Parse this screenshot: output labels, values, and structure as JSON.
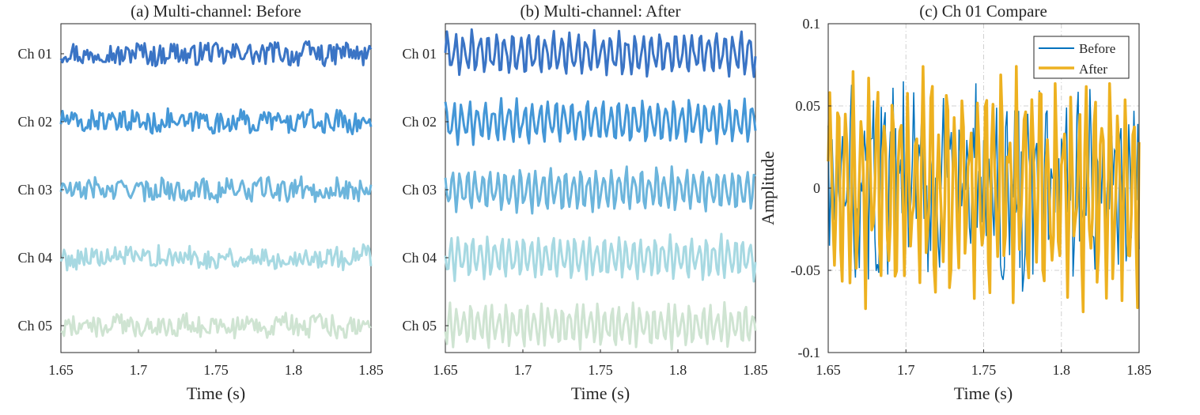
{
  "colors": {
    "channels": [
      "#3a74c5",
      "#4497d7",
      "#6cb5dc",
      "#a7d9e2",
      "#cfe4d2"
    ],
    "before": "#0072bd",
    "after": "#edb120",
    "grid": "#d0d0d0",
    "axis": "#262626"
  },
  "chart_data": [
    {
      "type": "line",
      "title": "(a) Multi-channel: Before",
      "xlabel": "Time (s)",
      "ylabel": "",
      "xlim": [
        1.65,
        1.85
      ],
      "xticks": [
        "1.65",
        "1.7",
        "1.75",
        "1.8",
        "1.85"
      ],
      "grid": false,
      "series": [
        {
          "name": "Ch 01",
          "amplitude": 0.03,
          "character": "noisy"
        },
        {
          "name": "Ch 02",
          "amplitude": 0.03,
          "character": "noisy"
        },
        {
          "name": "Ch 03",
          "amplitude": 0.03,
          "character": "noisy"
        },
        {
          "name": "Ch 04",
          "amplitude": 0.03,
          "character": "noisy"
        },
        {
          "name": "Ch 05",
          "amplitude": 0.03,
          "character": "noisy"
        }
      ]
    },
    {
      "type": "line",
      "title": "(b) Multi-channel: After",
      "xlabel": "Time (s)",
      "ylabel": "",
      "xlim": [
        1.65,
        1.85
      ],
      "xticks": [
        "1.65",
        "1.7",
        "1.75",
        "1.8",
        "1.85"
      ],
      "grid": false,
      "series": [
        {
          "name": "Ch 01",
          "amplitude": 0.04,
          "character": "oscillatory"
        },
        {
          "name": "Ch 02",
          "amplitude": 0.04,
          "character": "oscillatory"
        },
        {
          "name": "Ch 03",
          "amplitude": 0.04,
          "character": "oscillatory"
        },
        {
          "name": "Ch 04",
          "amplitude": 0.04,
          "character": "oscillatory"
        },
        {
          "name": "Ch 05",
          "amplitude": 0.04,
          "character": "oscillatory"
        }
      ]
    },
    {
      "type": "line",
      "title": "(c) Ch 01 Compare",
      "xlabel": "Time (s)",
      "ylabel": "Amplitude",
      "xlim": [
        1.65,
        1.85
      ],
      "ylim": [
        -0.1,
        0.1
      ],
      "xticks": [
        "1.65",
        "1.7",
        "1.75",
        "1.8",
        "1.85"
      ],
      "yticks": [
        "0.1",
        "0.05",
        "0",
        "-0.05",
        "-0.1"
      ],
      "grid": true,
      "legend": "top-right",
      "series": [
        {
          "name": "Before",
          "y_range": [
            -0.07,
            0.08
          ]
        },
        {
          "name": "After",
          "y_range": [
            -0.078,
            0.08
          ]
        }
      ]
    }
  ]
}
